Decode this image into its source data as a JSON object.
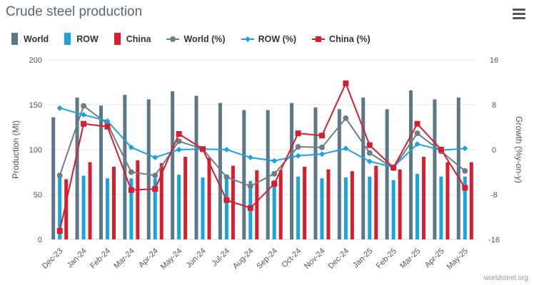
{
  "header": {
    "title": "Crude steel production",
    "menu_icon": "hamburger-menu-icon"
  },
  "credit": "worldsteel.org",
  "colors": {
    "world_bar": "#5b7788",
    "row_bar": "#1ba3e0",
    "china_bar": "#d81e2e",
    "world_line": "#6e7d88",
    "row_line": "#1ba3e0",
    "china_line": "#d81e2e"
  },
  "chart_data": {
    "type": "bar",
    "title": "Crude steel production",
    "categories": [
      "Dec-23",
      "Jan-24",
      "Feb-24",
      "Mar-24",
      "Apr-24",
      "May-24",
      "Jun-24",
      "Jul-24",
      "Aug-24",
      "Sep-24",
      "Oct-24",
      "Nov-24",
      "Dec-24",
      "Jan-25",
      "Feb-25",
      "Mar-25",
      "Apr-25",
      "May-25"
    ],
    "left_axis": {
      "label": "Production (Mt)",
      "ylim": [
        0,
        200
      ],
      "ticks": [
        "0",
        "50",
        "100",
        "150",
        "200"
      ]
    },
    "right_axis": {
      "label": "Growth (%y-on-y)",
      "ylim": [
        -16,
        16
      ],
      "ticks": [
        "-16",
        "-8",
        "0",
        "8",
        "16"
      ]
    },
    "grid": true,
    "legend_position": "top-left",
    "bar_series": [
      {
        "name": "World",
        "values": [
          136,
          158,
          149,
          161,
          156,
          165,
          160,
          152,
          144,
          144,
          152,
          147,
          145,
          158,
          145,
          166,
          156,
          158
        ]
      },
      {
        "name": "ROW",
        "values": [
          69,
          71,
          68,
          68,
          68,
          72,
          69,
          71,
          65,
          66,
          70,
          68,
          69,
          70,
          66,
          73,
          70,
          70
        ]
      },
      {
        "name": "China",
        "values": [
          67,
          86,
          81,
          88,
          85,
          92,
          91,
          82,
          77,
          77,
          81,
          78,
          76,
          82,
          78,
          92,
          86,
          86
        ]
      }
    ],
    "line_series": [
      {
        "name": "World (%)",
        "values": [
          -4.6,
          7.8,
          4.6,
          -4.0,
          -4.6,
          1.5,
          0.1,
          -4.9,
          -6.5,
          -4.3,
          0.5,
          0.4,
          5.6,
          -0.6,
          -3.3,
          2.9,
          -0.3,
          -3.8
        ]
      },
      {
        "name": "ROW (%)",
        "values": [
          7.4,
          6.2,
          5.1,
          0.4,
          -1.4,
          0.0,
          0.1,
          0.0,
          -1.4,
          -2.0,
          -1.1,
          -0.8,
          0.2,
          -2.1,
          -3.1,
          1.0,
          -0.1,
          0.2
        ]
      },
      {
        "name": "China (%)",
        "values": [
          -14.5,
          4.6,
          4.1,
          -7.2,
          -7.0,
          2.8,
          0.1,
          -9.0,
          -10.4,
          -6.1,
          2.9,
          2.5,
          11.8,
          0.8,
          -3.2,
          4.6,
          0.0,
          -6.8
        ]
      }
    ]
  }
}
